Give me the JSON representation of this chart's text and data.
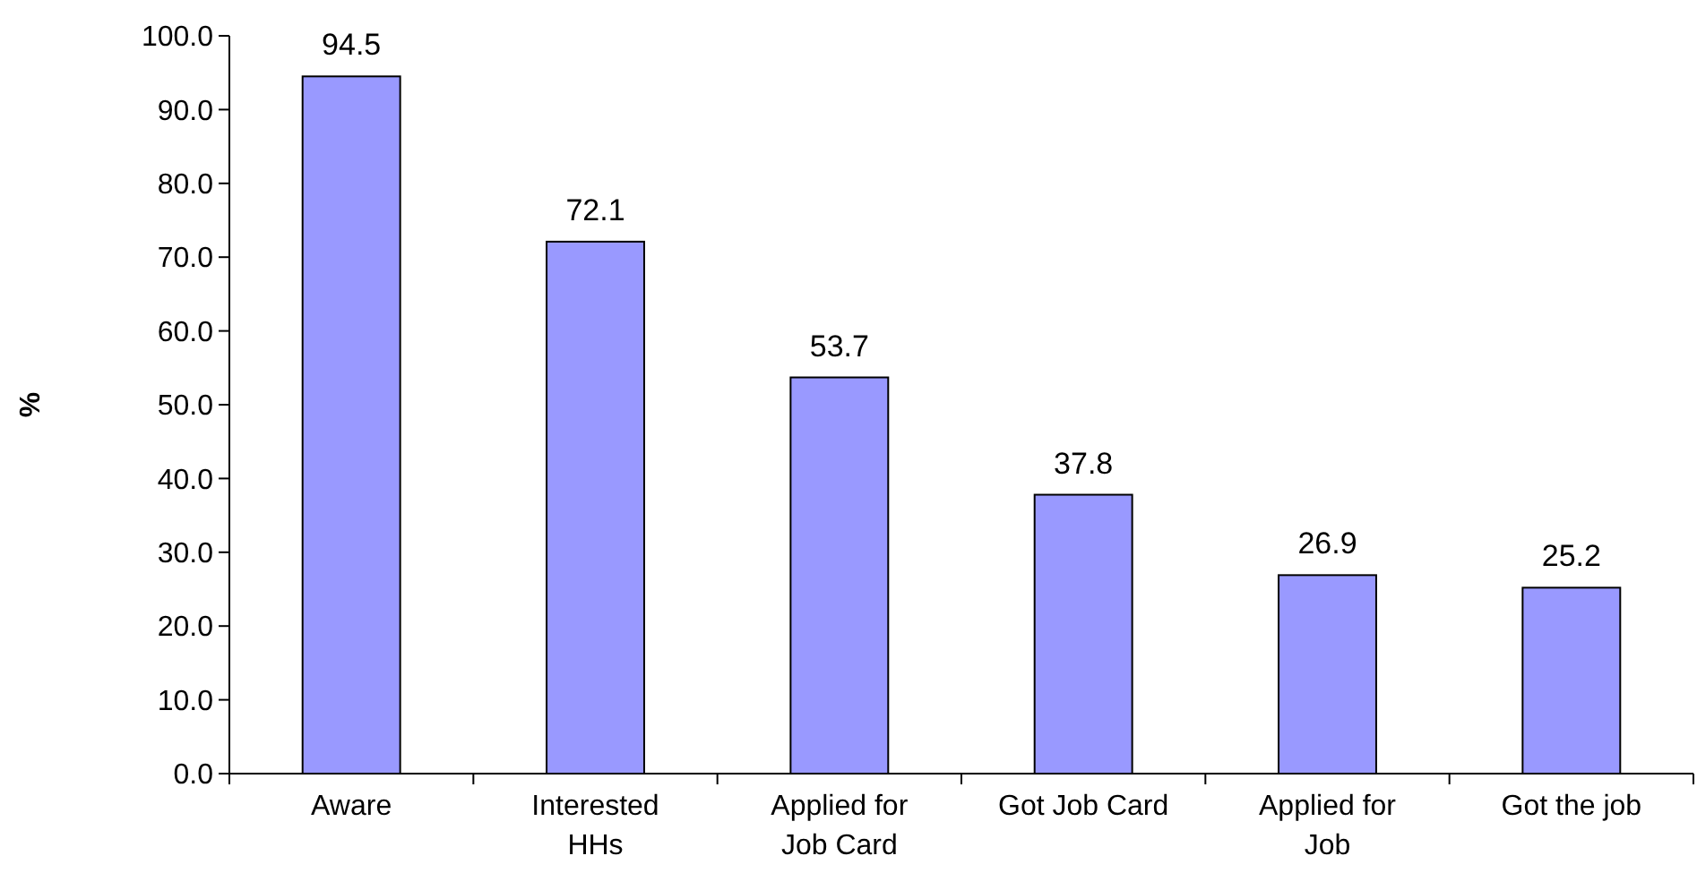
{
  "chart_data": {
    "type": "bar",
    "ylabel": "%",
    "categories": [
      "Aware",
      "Interested HHs",
      "Applied for Job Card",
      "Got Job Card",
      "Applied for Job",
      "Got the job"
    ],
    "values": [
      94.5,
      72.1,
      53.7,
      37.8,
      26.9,
      25.2
    ],
    "color": "#9999ff",
    "data_labels": true,
    "grid": false,
    "ylim": [
      0,
      100
    ],
    "yticks": [
      {
        "value": 0,
        "label": "0.0"
      },
      {
        "value": 10,
        "label": "10.0"
      },
      {
        "value": 20,
        "label": "20.0"
      },
      {
        "value": 30,
        "label": "30.0"
      },
      {
        "value": 40,
        "label": "40.0"
      },
      {
        "value": 50,
        "label": "50.0"
      },
      {
        "value": 60,
        "label": "60.0"
      },
      {
        "value": 70,
        "label": "70.0"
      },
      {
        "value": 80,
        "label": "80.0"
      },
      {
        "value": 90,
        "label": "90.0"
      },
      {
        "value": 100,
        "label": "100.0"
      }
    ]
  }
}
